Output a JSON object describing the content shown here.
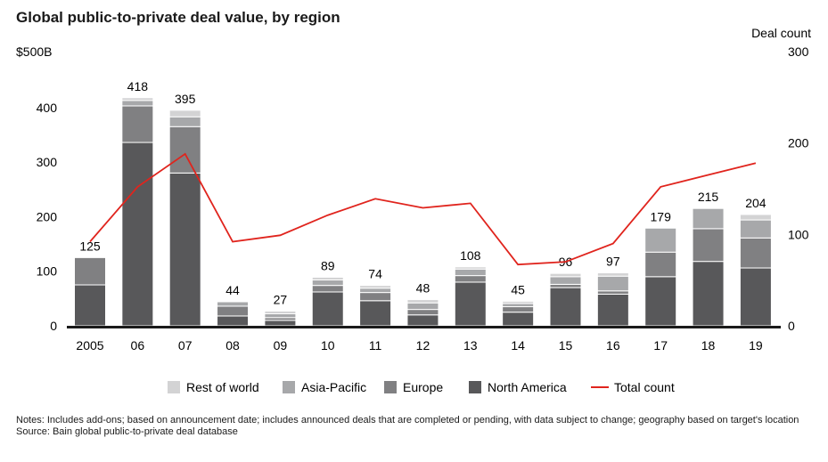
{
  "chart_data": {
    "type": "bar",
    "stacked": true,
    "title": "Global public-to-private deal value, by region",
    "ylabel_left": "$500B",
    "ylabel_right": "Deal count",
    "ylim_left": [
      0,
      500
    ],
    "ylim_right": [
      0,
      300
    ],
    "yticks_left": [
      "0",
      "100",
      "200",
      "300",
      "400"
    ],
    "yticks_right": [
      "0",
      "100",
      "200",
      "300"
    ],
    "categories": [
      "2005",
      "06",
      "07",
      "08",
      "09",
      "10",
      "11",
      "12",
      "13",
      "14",
      "15",
      "16",
      "17",
      "18",
      "19"
    ],
    "totals": [
      125,
      418,
      395,
      44,
      27,
      89,
      74,
      48,
      108,
      45,
      96,
      97,
      179,
      215,
      204
    ],
    "series": [
      {
        "name": "North America",
        "color": "#58585a",
        "values": [
          75,
          336,
          280,
          18,
          10,
          62,
          46,
          20,
          80,
          25,
          70,
          58,
          90,
          118,
          106
        ]
      },
      {
        "name": "Europe",
        "color": "#808082",
        "values": [
          50,
          67,
          85,
          18,
          5,
          12,
          15,
          10,
          12,
          10,
          6,
          6,
          45,
          60,
          55
        ]
      },
      {
        "name": "Asia-Pacific",
        "color": "#a7a8aa",
        "values": [
          0,
          10,
          18,
          8,
          7,
          10,
          8,
          12,
          12,
          6,
          14,
          27,
          44,
          37,
          33
        ]
      },
      {
        "name": "Rest of world",
        "color": "#d3d3d4",
        "values": [
          0,
          5,
          12,
          0,
          5,
          5,
          5,
          6,
          4,
          4,
          6,
          6,
          0,
          0,
          10
        ]
      }
    ],
    "line": {
      "name": "Total count",
      "color": "#e0241d",
      "axis": "right",
      "values": [
        92,
        152,
        188,
        92,
        99,
        121,
        139,
        129,
        134,
        67,
        70,
        90,
        152,
        165,
        178
      ]
    },
    "legend_order": [
      "Rest of world",
      "Asia-Pacific",
      "Europe",
      "North America",
      "Total count"
    ],
    "legend_position": "bottom"
  },
  "notes": "Notes: Includes add-ons; based on announcement date; includes announced deals that are completed or pending, with data subject to change; geography based on target's location",
  "source": "Source: Bain global public-to-private deal database"
}
